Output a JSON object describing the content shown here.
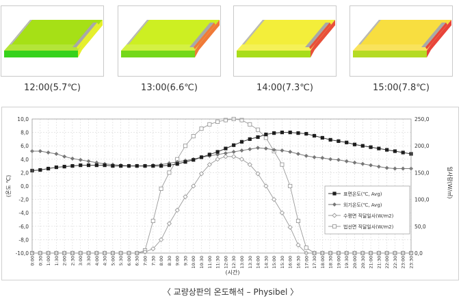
{
  "thumbnails": [
    {
      "label": "12:00(5.7℃)",
      "top_color": "#a6e016",
      "bottom_color": "#36d21c",
      "side_color": "#e6ef2c"
    },
    {
      "label": "13:00(6.6℃)",
      "top_color": "#cdef22",
      "bottom_color": "#74d81a",
      "side_color": "#f07a38"
    },
    {
      "label": "14:00(7.3℃)",
      "top_color": "#f3ee3a",
      "bottom_color": "#a8dd1a",
      "side_color": "#e8503a"
    },
    {
      "label": "15:00(7.8℃)",
      "top_color": "#f8de40",
      "bottom_color": "#b5db24",
      "side_color": "#e8443a"
    }
  ],
  "caption": "〈 교량상판의 온도해석 – Physibel 〉",
  "chart_data": {
    "type": "line",
    "xlabel": "(시간)",
    "ylabel": "(온도 ℃)",
    "y2label": "일사량(W/㎡)",
    "ylim": [
      -10,
      10
    ],
    "y2lim": [
      0,
      250
    ],
    "yticks": [
      "10,0",
      "8,0",
      "6,0",
      "4,0",
      "2,0",
      "0,0",
      "-2,0",
      "-4,0",
      "-6,0",
      "-8,0",
      "-10,0"
    ],
    "y2ticks": [
      "250,0",
      "200,0",
      "150,0",
      "100,0",
      "50,0",
      "0,0"
    ],
    "categories": [
      "0:00",
      "0:30",
      "1:00",
      "1:30",
      "2:00",
      "2:30",
      "3:00",
      "3:30",
      "4:00",
      "4:30",
      "5:00",
      "5:30",
      "6:00",
      "6:30",
      "7:00",
      "7:30",
      "8:00",
      "8:30",
      "9:00",
      "9:30",
      "10:00",
      "10:30",
      "11:00",
      "11:30",
      "12:00",
      "12:30",
      "13:00",
      "13:30",
      "14:00",
      "14:30",
      "15:00",
      "15:30",
      "16:00",
      "16:30",
      "17:00",
      "17:30",
      "18:00",
      "18:30",
      "19:00",
      "19:30",
      "20:00",
      "20:30",
      "21:00",
      "21:30",
      "22:00",
      "22:30",
      "23:00",
      "23:30"
    ],
    "grid": true,
    "legend_position": "right",
    "series": [
      {
        "name": "표면온도(℃, Avg)",
        "axis": "left",
        "marker": "square-filled",
        "color": "#333333",
        "values": [
          2.3,
          2.4,
          2.6,
          2.8,
          2.9,
          3.0,
          3.1,
          3.1,
          3.1,
          3.1,
          3.0,
          3.0,
          3.0,
          3.0,
          3.0,
          3.0,
          3.0,
          3.1,
          3.3,
          3.6,
          3.9,
          4.3,
          4.7,
          5.1,
          5.6,
          6.1,
          6.6,
          7.0,
          7.3,
          7.7,
          7.9,
          8.0,
          8.0,
          7.9,
          7.8,
          7.5,
          7.2,
          6.9,
          6.7,
          6.5,
          6.2,
          6.0,
          5.8,
          5.6,
          5.4,
          5.2,
          5.0,
          4.8
        ]
      },
      {
        "name": "외기온도(℃, Avg)",
        "axis": "left",
        "marker": "diamond-filled",
        "color": "#777777",
        "values": [
          5.2,
          5.2,
          5.0,
          4.8,
          4.4,
          4.1,
          3.9,
          3.7,
          3.5,
          3.3,
          3.2,
          3.1,
          3.0,
          3.0,
          3.0,
          3.1,
          3.2,
          3.4,
          3.6,
          3.8,
          4.0,
          4.3,
          4.5,
          4.7,
          4.9,
          5.1,
          5.3,
          5.5,
          5.7,
          5.6,
          5.4,
          5.3,
          5.1,
          4.8,
          4.5,
          4.3,
          4.2,
          4.0,
          3.9,
          3.7,
          3.5,
          3.3,
          3.1,
          2.9,
          2.7,
          2.6,
          2.6,
          2.6
        ]
      },
      {
        "name": "수평면 직달일사(W/m2)",
        "axis": "right",
        "marker": "diamond-open",
        "color": "#9a9a9a",
        "values": [
          0,
          0,
          0,
          0,
          0,
          0,
          0,
          0,
          0,
          0,
          0,
          0,
          0,
          0,
          2,
          8,
          25,
          55,
          80,
          105,
          125,
          148,
          165,
          175,
          180,
          180,
          175,
          165,
          148,
          125,
          100,
          75,
          48,
          15,
          0,
          0,
          0,
          0,
          0,
          0,
          0,
          0,
          0,
          0,
          0,
          0,
          0,
          0
        ]
      },
      {
        "name": "법선면 직달일사(W/m2)",
        "axis": "right",
        "marker": "square-open",
        "color": "#9a9a9a",
        "values": [
          0,
          0,
          0,
          0,
          0,
          0,
          0,
          0,
          0,
          0,
          0,
          0,
          0,
          0,
          5,
          60,
          120,
          150,
          175,
          200,
          218,
          232,
          240,
          245,
          248,
          250,
          248,
          240,
          230,
          215,
          190,
          165,
          125,
          60,
          10,
          0,
          0,
          0,
          0,
          0,
          0,
          0,
          0,
          0,
          0,
          0,
          0,
          0
        ]
      }
    ]
  }
}
